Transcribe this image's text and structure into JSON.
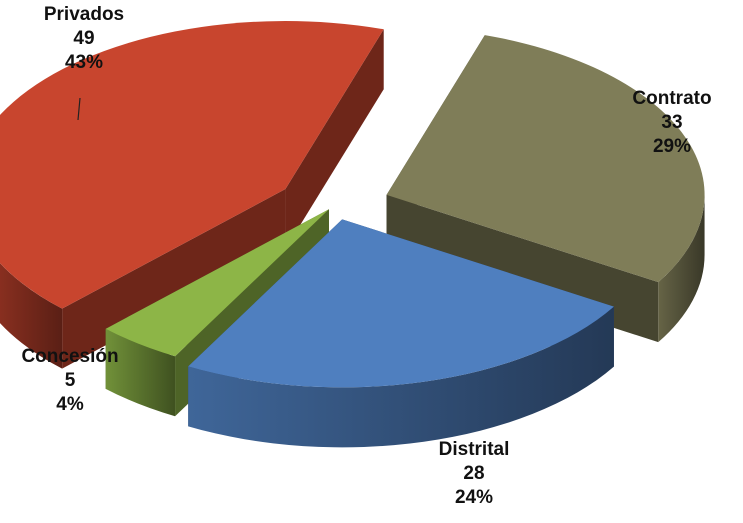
{
  "chart_data": {
    "type": "pie",
    "title": "",
    "style": "3d-exploded",
    "slices": [
      {
        "label": "Contrato",
        "value": 33,
        "percent": "29%",
        "color": "#7f7d58"
      },
      {
        "label": "Distrital",
        "value": 28,
        "percent": "24%",
        "color": "#4f7fbf"
      },
      {
        "label": "Concesión",
        "value": 5,
        "percent": "4%",
        "color": "#8db547"
      },
      {
        "label": "Privados",
        "value": 49,
        "percent": "43%",
        "color": "#c8452e"
      }
    ],
    "legend": "none",
    "data_labels": "outside"
  }
}
